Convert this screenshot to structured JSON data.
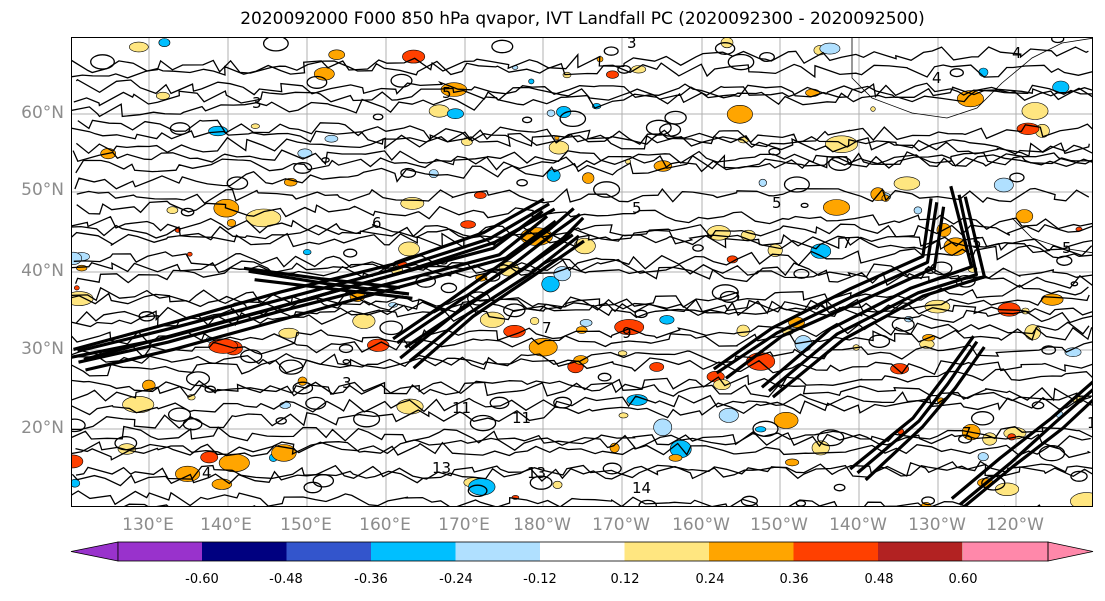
{
  "title": "2020092000 F000 850 hPa qvapor, IVT Landfall PC (2020092300 - 2020092500)",
  "lat_labels": [
    "60°N",
    "50°N",
    "40°N",
    "30°N",
    "20°N"
  ],
  "lon_labels": [
    "130°E",
    "140°E",
    "150°E",
    "160°E",
    "170°E",
    "180°W",
    "170°W",
    "160°W",
    "150°W",
    "140°W",
    "130°W",
    "120°W"
  ],
  "contour_labels": [
    "3",
    "4",
    "5",
    "6",
    "7",
    "9",
    "11",
    "13",
    "14"
  ],
  "colorbar": {
    "ticks": [
      "-0.60",
      "-0.48",
      "-0.36",
      "-0.24",
      "-0.12",
      "0.12",
      "0.24",
      "0.36",
      "0.48",
      "0.60"
    ],
    "colors": [
      "#9932cc",
      "#000080",
      "#3355cc",
      "#00bfff",
      "#b0e0ff",
      "#ffffff",
      "#ffe680",
      "#ffa500",
      "#ff4000",
      "#b22222",
      "#ff88aa"
    ]
  },
  "map": {
    "extent_lon": [
      120,
      245
    ],
    "extent_lat": [
      10,
      70
    ],
    "gridlines": true,
    "contour_color": "#000000"
  }
}
